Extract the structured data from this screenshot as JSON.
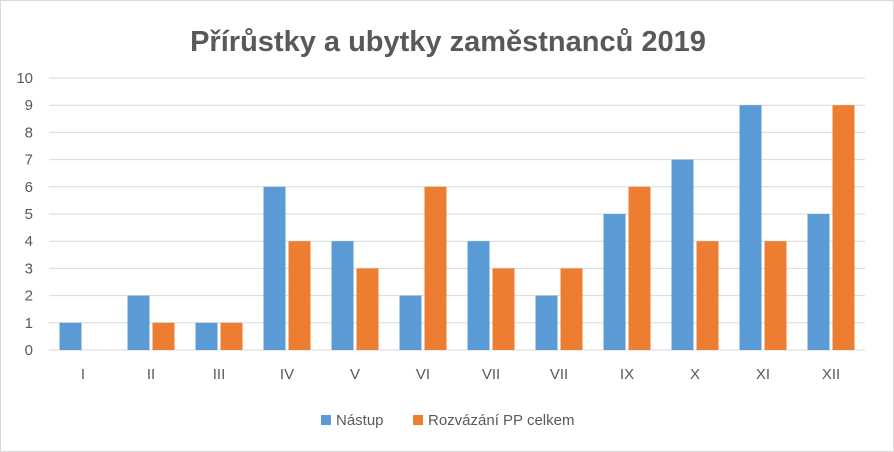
{
  "chart_data": {
    "type": "bar",
    "title": "Přírůstky a ubytky zaměstnanců 2019",
    "xlabel": "",
    "ylabel": "",
    "ylim": [
      0,
      10
    ],
    "yticks": [
      "0",
      "1",
      "2",
      "3",
      "4",
      "5",
      "6",
      "7",
      "8",
      "9",
      "10"
    ],
    "grid": true,
    "legend_position": "bottom",
    "categories": [
      "I",
      "II",
      "III",
      "IV",
      "V",
      "VI",
      "VII",
      "VII",
      "IX",
      "X",
      "XI",
      "XII"
    ],
    "series": [
      {
        "name": "Nástup",
        "color": "#5b9bd5",
        "values": [
          1,
          2,
          1,
          6,
          4,
          2,
          4,
          2,
          5,
          7,
          9,
          5
        ]
      },
      {
        "name": "Rozvázání PP celkem",
        "color": "#ed7d31",
        "values": [
          0,
          1,
          1,
          4,
          3,
          6,
          3,
          3,
          6,
          4,
          4,
          9
        ]
      }
    ]
  }
}
